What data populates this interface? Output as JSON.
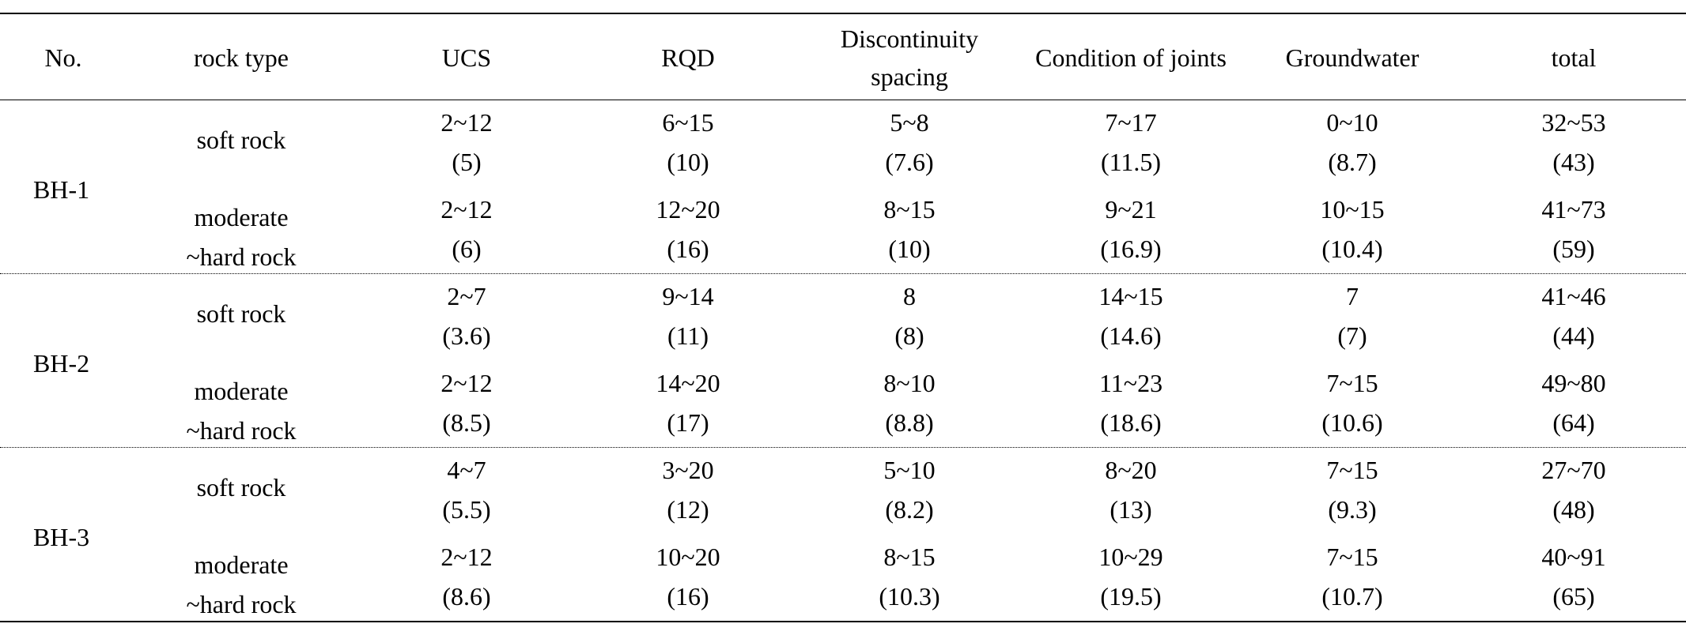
{
  "headers": {
    "no": "No.",
    "rock_type": "rock type",
    "ucs": "UCS",
    "rqd": "RQD",
    "disc_line1": "Discontinuity",
    "disc_line2": "spacing",
    "condition": "Condition of joints",
    "groundwater": "Groundwater",
    "total": "total"
  },
  "groups": [
    {
      "label": "BH-1",
      "rows": [
        {
          "rock": [
            "soft rock"
          ],
          "ucs": [
            "2~12",
            "(5)"
          ],
          "rqd": [
            "6~15",
            "(10)"
          ],
          "disc": [
            "5~8",
            "(7.6)"
          ],
          "cond": [
            "7~17",
            "(11.5)"
          ],
          "gw": [
            "0~10",
            "(8.7)"
          ],
          "total": [
            "32~53",
            "(43)"
          ]
        },
        {
          "rock": [
            "moderate",
            "~hard rock"
          ],
          "ucs": [
            "2~12",
            "(6)"
          ],
          "rqd": [
            "12~20",
            "(16)"
          ],
          "disc": [
            "8~15",
            "(10)"
          ],
          "cond": [
            "9~21",
            "(16.9)"
          ],
          "gw": [
            "10~15",
            "(10.4)"
          ],
          "total": [
            "41~73",
            "(59)"
          ]
        }
      ]
    },
    {
      "label": "BH-2",
      "rows": [
        {
          "rock": [
            "soft rock"
          ],
          "ucs": [
            "2~7",
            "(3.6)"
          ],
          "rqd": [
            "9~14",
            "(11)"
          ],
          "disc": [
            "8",
            "(8)"
          ],
          "cond": [
            "14~15",
            "(14.6)"
          ],
          "gw": [
            "7",
            "(7)"
          ],
          "total": [
            "41~46",
            "(44)"
          ]
        },
        {
          "rock": [
            "moderate",
            "~hard rock"
          ],
          "ucs": [
            "2~12",
            "(8.5)"
          ],
          "rqd": [
            "14~20",
            "(17)"
          ],
          "disc": [
            "8~10",
            "(8.8)"
          ],
          "cond": [
            "11~23",
            "(18.6)"
          ],
          "gw": [
            "7~15",
            "(10.6)"
          ],
          "total": [
            "49~80",
            "(64)"
          ]
        }
      ]
    },
    {
      "label": "BH-3",
      "rows": [
        {
          "rock": [
            "soft rock"
          ],
          "ucs": [
            "4~7",
            "(5.5)"
          ],
          "rqd": [
            "3~20",
            "(12)"
          ],
          "disc": [
            "5~10",
            "(8.2)"
          ],
          "cond": [
            "8~20",
            "(13)"
          ],
          "gw": [
            "7~15",
            "(9.3)"
          ],
          "total": [
            "27~70",
            "(48)"
          ]
        },
        {
          "rock": [
            "moderate",
            "~hard rock"
          ],
          "ucs": [
            "2~12",
            "(8.6)"
          ],
          "rqd": [
            "10~20",
            "(16)"
          ],
          "disc": [
            "8~15",
            "(10.3)"
          ],
          "cond": [
            "10~29",
            "(19.5)"
          ],
          "gw": [
            "7~15",
            "(10.7)"
          ],
          "total": [
            "40~91",
            "(65)"
          ]
        }
      ]
    }
  ]
}
